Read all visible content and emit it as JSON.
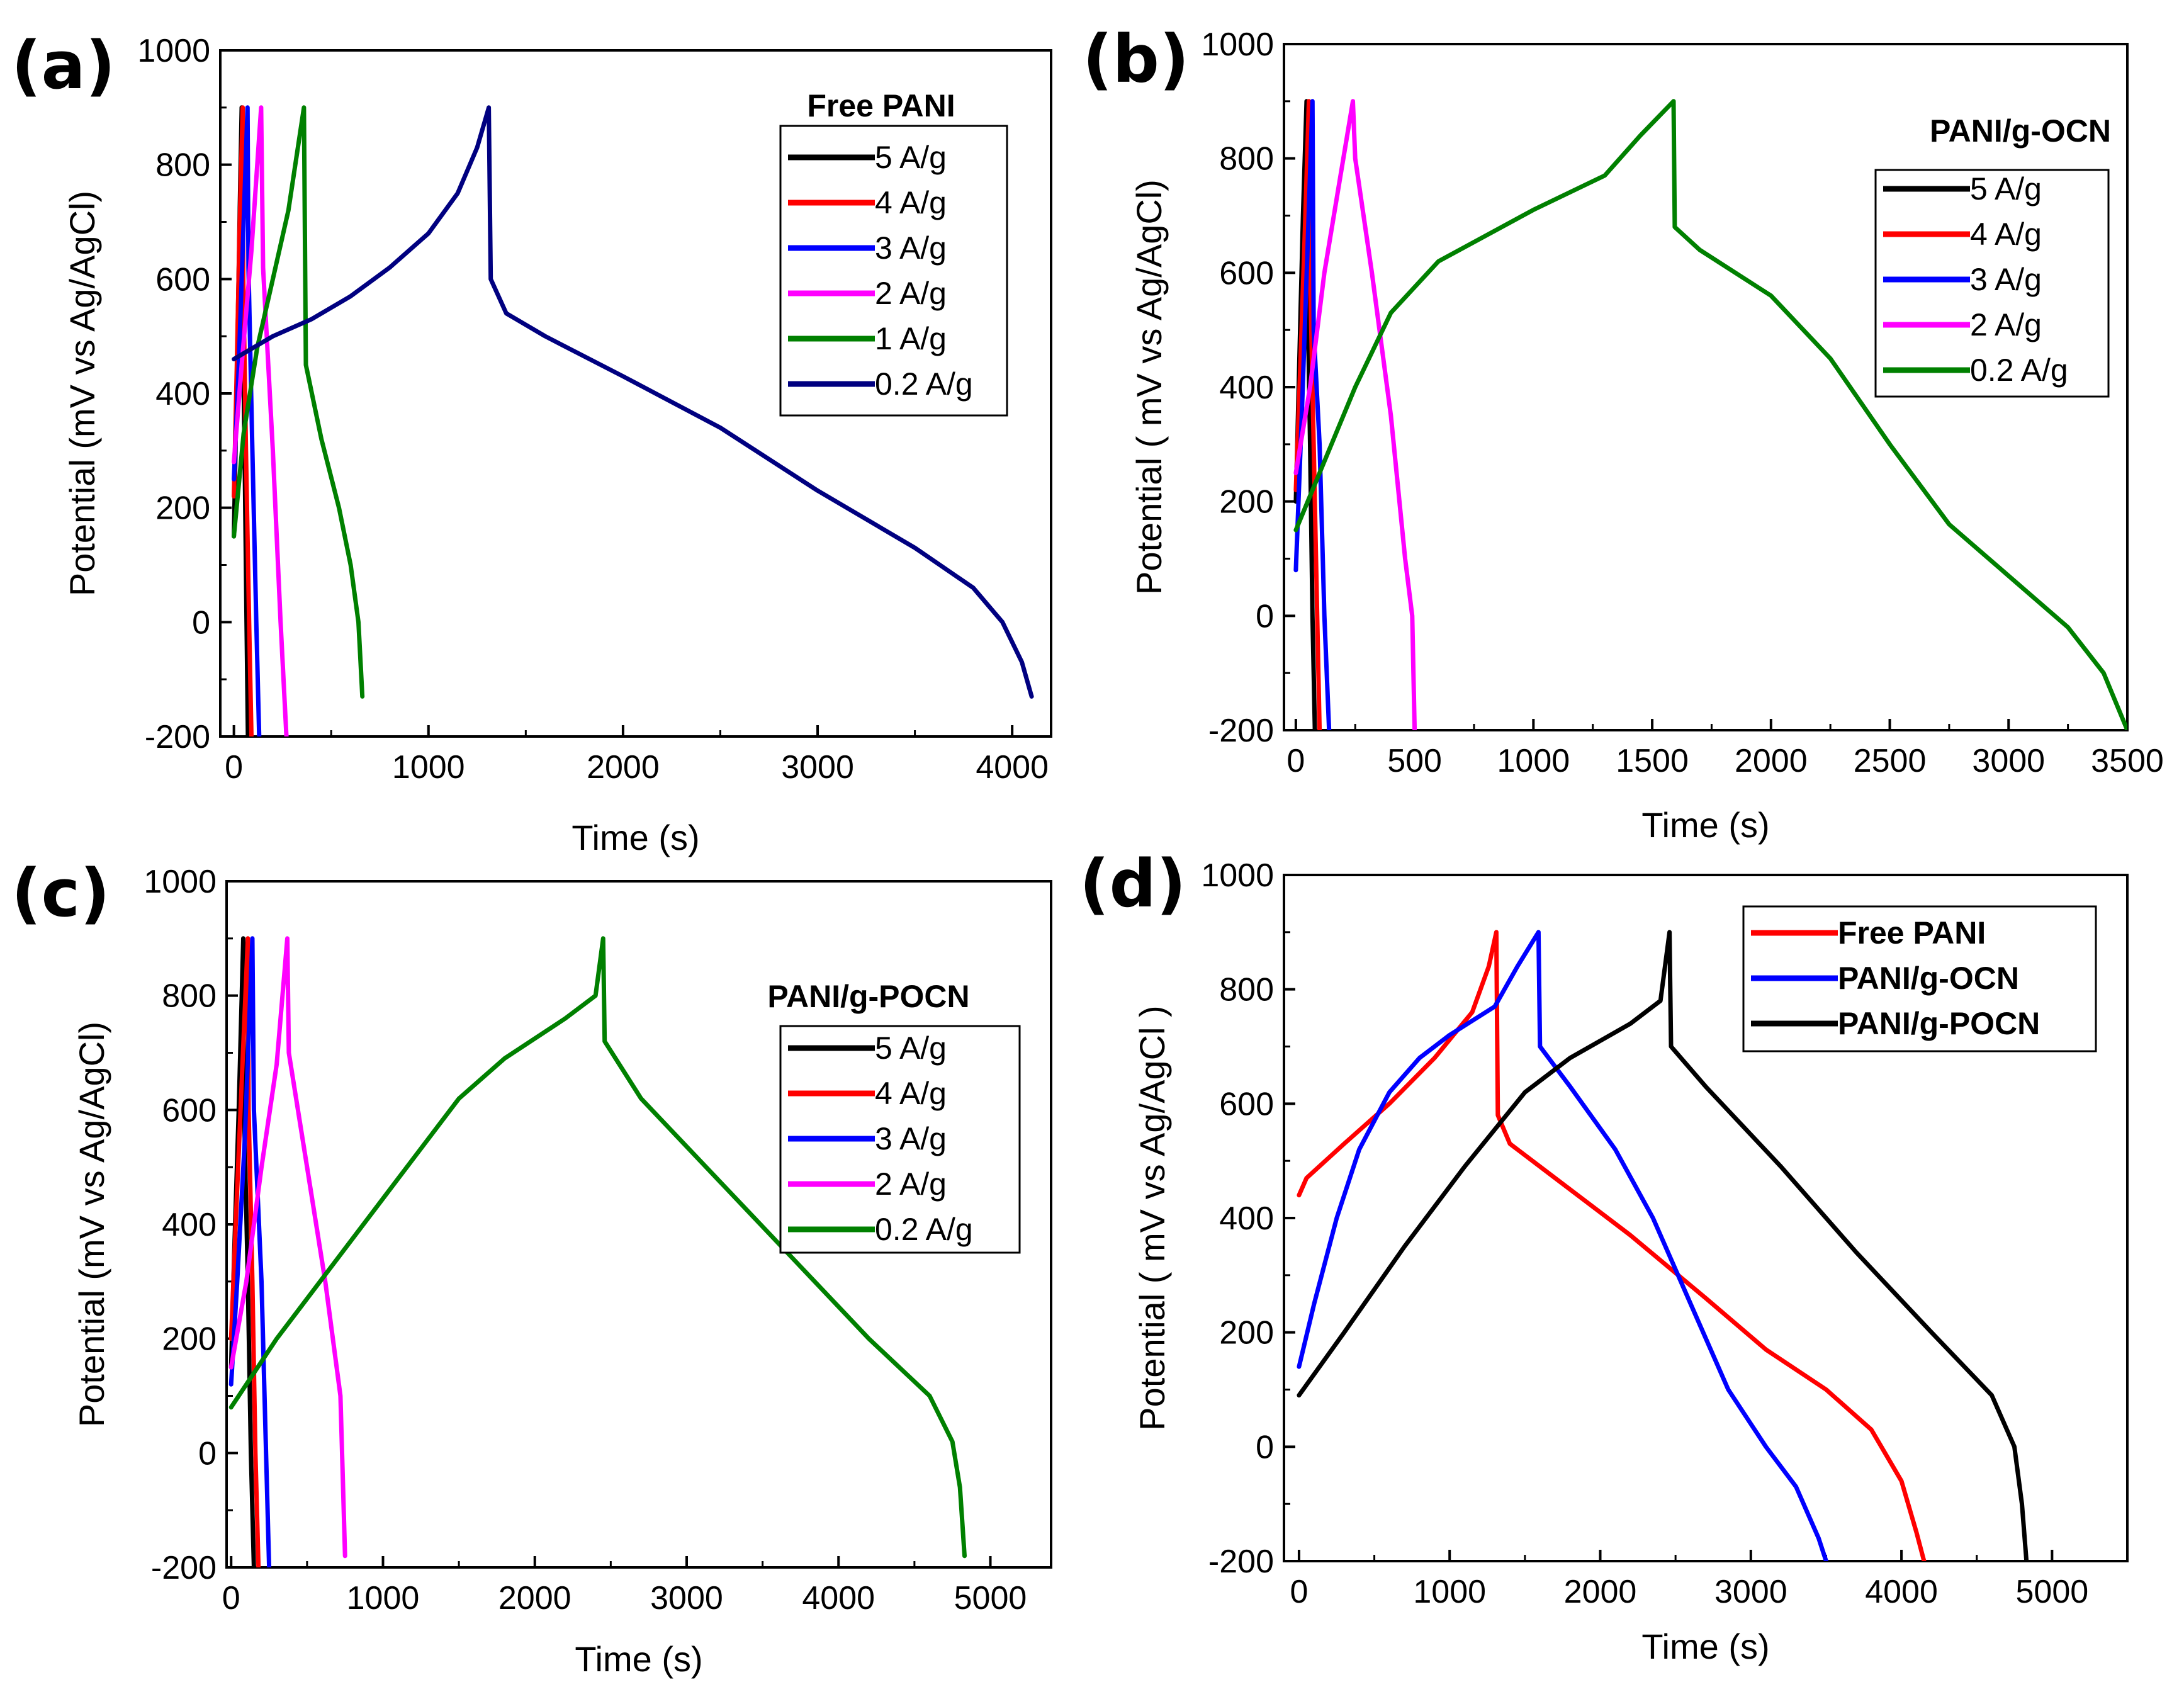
{
  "chart_data": [
    {
      "panel": "(a)",
      "type": "line",
      "xlabel": "Time (s)",
      "ylabel": "Potential (mV vs Ag/AgCl)",
      "xlim": [
        -70,
        4200
      ],
      "ylim": [
        -200,
        1000
      ],
      "xticks": [
        0,
        1000,
        2000,
        3000,
        4000
      ],
      "yticks": [
        -200,
        0,
        200,
        400,
        600,
        800,
        1000
      ],
      "legend_title": "Free PANI",
      "legend_position": "top-right",
      "series": [
        {
          "name": "5 A/g",
          "color": "#000000",
          "points": [
            [
              0,
              150
            ],
            [
              10,
              330
            ],
            [
              20,
              520
            ],
            [
              30,
              720
            ],
            [
              40,
              900
            ],
            [
              42,
              600
            ],
            [
              55,
              300
            ],
            [
              65,
              0
            ],
            [
              72,
              -200
            ]
          ]
        },
        {
          "name": "4 A/g",
          "color": "#ff0000",
          "points": [
            [
              0,
              220
            ],
            [
              15,
              450
            ],
            [
              30,
              700
            ],
            [
              45,
              900
            ],
            [
              48,
              600
            ],
            [
              62,
              300
            ],
            [
              78,
              0
            ],
            [
              90,
              -200
            ]
          ]
        },
        {
          "name": "3 A/g",
          "color": "#0000ff",
          "points": [
            [
              0,
              250
            ],
            [
              25,
              450
            ],
            [
              50,
              700
            ],
            [
              70,
              900
            ],
            [
              75,
              620
            ],
            [
              95,
              300
            ],
            [
              115,
              0
            ],
            [
              130,
              -200
            ]
          ]
        },
        {
          "name": "2 A/g",
          "color": "#ff00ff",
          "points": [
            [
              0,
              280
            ],
            [
              40,
              450
            ],
            [
              90,
              650
            ],
            [
              140,
              900
            ],
            [
              150,
              620
            ],
            [
              200,
              300
            ],
            [
              240,
              0
            ],
            [
              270,
              -200
            ]
          ]
        },
        {
          "name": "1 A/g",
          "color": "#008000",
          "points": [
            [
              0,
              150
            ],
            [
              50,
              330
            ],
            [
              120,
              480
            ],
            [
              200,
              600
            ],
            [
              280,
              720
            ],
            [
              360,
              900
            ],
            [
              370,
              450
            ],
            [
              450,
              320
            ],
            [
              540,
              200
            ],
            [
              600,
              100
            ],
            [
              640,
              0
            ],
            [
              660,
              -130
            ]
          ]
        },
        {
          "name": "0.2 A/g",
          "color": "#000080",
          "points": [
            [
              0,
              460
            ],
            [
              200,
              500
            ],
            [
              400,
              530
            ],
            [
              600,
              570
            ],
            [
              800,
              620
            ],
            [
              1000,
              680
            ],
            [
              1150,
              750
            ],
            [
              1250,
              830
            ],
            [
              1310,
              900
            ],
            [
              1320,
              600
            ],
            [
              1400,
              540
            ],
            [
              1600,
              500
            ],
            [
              2000,
              430
            ],
            [
              2500,
              340
            ],
            [
              3000,
              230
            ],
            [
              3500,
              130
            ],
            [
              3800,
              60
            ],
            [
              3950,
              0
            ],
            [
              4050,
              -70
            ],
            [
              4100,
              -130
            ]
          ]
        }
      ]
    },
    {
      "panel": "(b)",
      "type": "line",
      "xlabel": "Time (s)",
      "ylabel": "Potential ( mV vs Ag/AgCl)",
      "xlim": [
        -50,
        3500
      ],
      "ylim": [
        -200,
        1000
      ],
      "xticks": [
        0,
        500,
        1000,
        1500,
        2000,
        2500,
        3000,
        3500
      ],
      "yticks": [
        -200,
        0,
        200,
        400,
        600,
        800,
        1000
      ],
      "legend_title": "PANI/g-OCN",
      "legend_position": "top-right",
      "series": [
        {
          "name": "5 A/g",
          "color": "#000000",
          "points": [
            [
              0,
              200
            ],
            [
              15,
              450
            ],
            [
              30,
              700
            ],
            [
              45,
              900
            ],
            [
              48,
              600
            ],
            [
              60,
              300
            ],
            [
              70,
              0
            ],
            [
              80,
              -200
            ]
          ]
        },
        {
          "name": "4 A/g",
          "color": "#ff0000",
          "points": [
            [
              0,
              220
            ],
            [
              20,
              450
            ],
            [
              40,
              700
            ],
            [
              55,
              900
            ],
            [
              60,
              600
            ],
            [
              75,
              300
            ],
            [
              90,
              0
            ],
            [
              100,
              -200
            ]
          ]
        },
        {
          "name": "3 A/g",
          "color": "#0000ff",
          "points": [
            [
              0,
              80
            ],
            [
              25,
              350
            ],
            [
              50,
              650
            ],
            [
              70,
              900
            ],
            [
              75,
              500
            ],
            [
              100,
              300
            ],
            [
              120,
              0
            ],
            [
              140,
              -200
            ]
          ]
        },
        {
          "name": "2 A/g",
          "color": "#ff00ff",
          "points": [
            [
              0,
              250
            ],
            [
              60,
              400
            ],
            [
              120,
              600
            ],
            [
              180,
              750
            ],
            [
              240,
              900
            ],
            [
              250,
              800
            ],
            [
              320,
              600
            ],
            [
              400,
              350
            ],
            [
              460,
              100
            ],
            [
              490,
              0
            ],
            [
              500,
              -200
            ]
          ]
        },
        {
          "name": "0.2 A/g",
          "color": "#008000",
          "points": [
            [
              0,
              150
            ],
            [
              100,
              250
            ],
            [
              250,
              400
            ],
            [
              400,
              530
            ],
            [
              600,
              620
            ],
            [
              1000,
              710
            ],
            [
              1300,
              770
            ],
            [
              1450,
              840
            ],
            [
              1590,
              900
            ],
            [
              1595,
              680
            ],
            [
              1700,
              640
            ],
            [
              2000,
              560
            ],
            [
              2250,
              450
            ],
            [
              2500,
              300
            ],
            [
              2750,
              160
            ],
            [
              3000,
              70
            ],
            [
              3250,
              -20
            ],
            [
              3400,
              -100
            ],
            [
              3500,
              -200
            ]
          ]
        }
      ]
    },
    {
      "panel": "(c)",
      "type": "line",
      "xlabel": "Time (s)",
      "ylabel": "Potential (mV vs Ag/AgCl)",
      "xlim": [
        -30,
        5400
      ],
      "ylim": [
        -200,
        1000
      ],
      "xticks": [
        0,
        1000,
        2000,
        3000,
        4000,
        5000
      ],
      "yticks": [
        -200,
        0,
        200,
        400,
        600,
        800,
        1000
      ],
      "legend_title": "PANI/g-POCN",
      "legend_position": "right",
      "series": [
        {
          "name": "5 A/g",
          "color": "#000000",
          "points": [
            [
              0,
              150
            ],
            [
              20,
              350
            ],
            [
              50,
              600
            ],
            [
              80,
              900
            ],
            [
              85,
              600
            ],
            [
              110,
              300
            ],
            [
              130,
              0
            ],
            [
              150,
              -200
            ]
          ]
        },
        {
          "name": "4 A/g",
          "color": "#ff0000",
          "points": [
            [
              0,
              200
            ],
            [
              30,
              400
            ],
            [
              70,
              650
            ],
            [
              110,
              900
            ],
            [
              115,
              600
            ],
            [
              140,
              300
            ],
            [
              160,
              0
            ],
            [
              180,
              -200
            ]
          ]
        },
        {
          "name": "3 A/g",
          "color": "#0000ff",
          "points": [
            [
              0,
              120
            ],
            [
              40,
              300
            ],
            [
              90,
              550
            ],
            [
              140,
              900
            ],
            [
              150,
              600
            ],
            [
              200,
              300
            ],
            [
              230,
              0
            ],
            [
              250,
              -200
            ]
          ]
        },
        {
          "name": "2 A/g",
          "color": "#ff00ff",
          "points": [
            [
              0,
              150
            ],
            [
              100,
              300
            ],
            [
              200,
              500
            ],
            [
              300,
              680
            ],
            [
              370,
              900
            ],
            [
              380,
              700
            ],
            [
              500,
              500
            ],
            [
              620,
              300
            ],
            [
              720,
              100
            ],
            [
              750,
              -180
            ]
          ]
        },
        {
          "name": "0.2 A/g",
          "color": "#008000",
          "points": [
            [
              0,
              80
            ],
            [
              300,
              200
            ],
            [
              700,
              340
            ],
            [
              1100,
              480
            ],
            [
              1500,
              620
            ],
            [
              1800,
              690
            ],
            [
              2200,
              760
            ],
            [
              2400,
              800
            ],
            [
              2450,
              900
            ],
            [
              2460,
              720
            ],
            [
              2700,
              620
            ],
            [
              3200,
              480
            ],
            [
              3700,
              340
            ],
            [
              4200,
              200
            ],
            [
              4600,
              100
            ],
            [
              4750,
              20
            ],
            [
              4800,
              -60
            ],
            [
              4830,
              -180
            ]
          ]
        }
      ]
    },
    {
      "panel": "(d)",
      "type": "line",
      "xlabel": "Time (s)",
      "ylabel": "Potential ( mV vs Ag/AgCl )",
      "xlim": [
        -100,
        5500
      ],
      "ylim": [
        -200,
        1000
      ],
      "xticks": [
        0,
        1000,
        2000,
        3000,
        4000,
        5000
      ],
      "yticks": [
        -200,
        0,
        200,
        400,
        600,
        800,
        1000
      ],
      "legend_title": "",
      "legend_position": "top-right",
      "series": [
        {
          "name": "Free PANI",
          "color": "#ff0000",
          "points": [
            [
              0,
              440
            ],
            [
              50,
              470
            ],
            [
              300,
              530
            ],
            [
              600,
              600
            ],
            [
              900,
              680
            ],
            [
              1150,
              760
            ],
            [
              1260,
              840
            ],
            [
              1310,
              900
            ],
            [
              1320,
              580
            ],
            [
              1400,
              530
            ],
            [
              1700,
              470
            ],
            [
              2200,
              370
            ],
            [
              2700,
              260
            ],
            [
              3100,
              170
            ],
            [
              3500,
              100
            ],
            [
              3800,
              30
            ],
            [
              4000,
              -60
            ],
            [
              4100,
              -150
            ],
            [
              4150,
              -200
            ]
          ]
        },
        {
          "name": "PANI/g-OCN",
          "color": "#0000ff",
          "points": [
            [
              0,
              140
            ],
            [
              100,
              250
            ],
            [
              250,
              400
            ],
            [
              400,
              520
            ],
            [
              600,
              620
            ],
            [
              800,
              680
            ],
            [
              1000,
              720
            ],
            [
              1300,
              770
            ],
            [
              1450,
              840
            ],
            [
              1590,
              900
            ],
            [
              1600,
              700
            ],
            [
              1800,
              630
            ],
            [
              2100,
              520
            ],
            [
              2350,
              400
            ],
            [
              2600,
              250
            ],
            [
              2850,
              100
            ],
            [
              3100,
              0
            ],
            [
              3300,
              -70
            ],
            [
              3450,
              -160
            ],
            [
              3500,
              -200
            ]
          ]
        },
        {
          "name": "PANI/g-POCN",
          "color": "#000000",
          "points": [
            [
              0,
              90
            ],
            [
              300,
              200
            ],
            [
              700,
              350
            ],
            [
              1100,
              490
            ],
            [
              1500,
              620
            ],
            [
              1800,
              680
            ],
            [
              2200,
              740
            ],
            [
              2400,
              780
            ],
            [
              2460,
              900
            ],
            [
              2470,
              700
            ],
            [
              2700,
              630
            ],
            [
              3200,
              490
            ],
            [
              3700,
              340
            ],
            [
              4200,
              200
            ],
            [
              4600,
              90
            ],
            [
              4750,
              0
            ],
            [
              4800,
              -100
            ],
            [
              4830,
              -200
            ]
          ]
        }
      ]
    }
  ]
}
